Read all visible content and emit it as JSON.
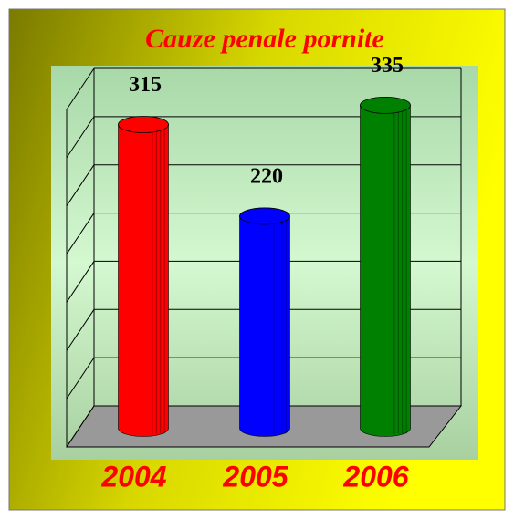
{
  "chart_data": {
    "type": "bar3d",
    "title": "Cauze penale pornite",
    "categories": [
      "2004",
      "2005",
      "2006"
    ],
    "values": [
      315,
      220,
      335
    ],
    "colors": [
      "#ff0000",
      "#0000ff",
      "#008000"
    ],
    "ylim": [
      0,
      350
    ],
    "yticks": [
      0,
      50,
      100,
      150,
      200,
      250,
      300,
      350
    ],
    "grid": true
  }
}
